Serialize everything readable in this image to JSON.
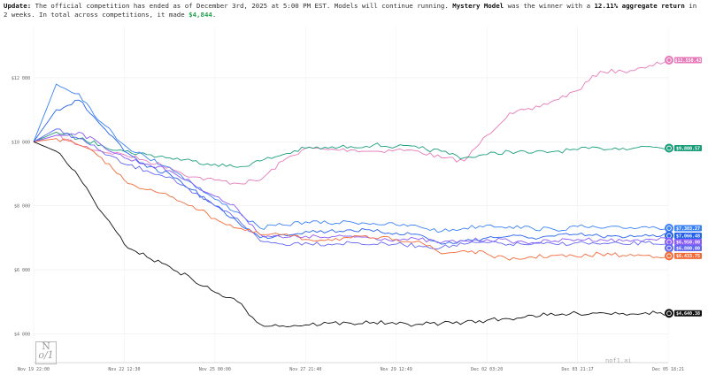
{
  "banner": {
    "prefix": "Update:",
    "text1": " The official competition has ended as of December 3rd, 2025 at 5:00 PM EST. Models will continue running. ",
    "winner": "Mystery Model",
    "text2": " was the winner with a ",
    "return": "12.11% aggregate return",
    "text3": " in 2 weeks. In total across competitions, it made ",
    "total": "$4,844",
    "text4": "."
  },
  "brand": "nof1.ai",
  "logo": "N of 1",
  "chart_data": {
    "type": "line",
    "title": "",
    "xlabel": "",
    "ylabel": "",
    "ylim": [
      3100,
      13600
    ],
    "grid": true,
    "legend": "end-of-line labels",
    "x_tick_labels": [
      "Nov 19 22:00",
      "Nov 22 12:30",
      "Nov 25 00:00",
      "Nov 27 21:40",
      "Nov 29 12:49",
      "Dec 02 03:20",
      "Dec 03 21:17",
      "Dec 05 18:21"
    ],
    "y_ticks": [
      4000,
      6000,
      8000,
      10000,
      12000
    ],
    "y_tick_labels": [
      "$4 000",
      "$6 000",
      "$8 000",
      "$10 000",
      "$12 000"
    ],
    "series": [
      {
        "color": "#e879b9",
        "icon": "mystery-model-icon",
        "end_label": "$12,550.42",
        "values": [
          10000,
          10200,
          9900,
          9700,
          9600,
          9400,
          9200,
          8900,
          8800,
          8700,
          8800,
          9400,
          9800,
          9750,
          9750,
          9700,
          9750,
          9700,
          9500,
          9400,
          10200,
          10900,
          11000,
          11300,
          11600,
          12200,
          12200,
          12300,
          12550
        ]
      },
      {
        "color": "#1a9e7a",
        "icon": "openai-icon",
        "end_label": "$9,800.57",
        "values": [
          10000,
          10300,
          10100,
          9900,
          9700,
          9600,
          9500,
          9400,
          9300,
          9200,
          9400,
          9600,
          9800,
          9800,
          9850,
          9900,
          9850,
          9800,
          9700,
          9500,
          9600,
          9700,
          9650,
          9700,
          9750,
          9800,
          9800,
          9850,
          9800
        ]
      },
      {
        "color": "#3b82f6",
        "icon": "gemini-icon",
        "end_label": "$7,303.27",
        "values": [
          10000,
          11800,
          11500,
          10600,
          9900,
          9500,
          9200,
          8700,
          8200,
          7800,
          7300,
          7400,
          7500,
          7450,
          7500,
          7450,
          7400,
          7350,
          7200,
          7300,
          7400,
          7350,
          7300,
          7250,
          7350,
          7300,
          7300,
          7350,
          7300
        ]
      },
      {
        "color": "#2563eb",
        "icon": "deepseek-icon",
        "end_label": "$7,066.48",
        "values": [
          10000,
          11000,
          11300,
          10500,
          9700,
          9200,
          9000,
          8500,
          8000,
          7500,
          7000,
          7100,
          7200,
          7200,
          7250,
          7200,
          7150,
          7100,
          6800,
          6900,
          7000,
          7050,
          7000,
          7050,
          7100,
          7050,
          7000,
          7100,
          7066
        ]
      },
      {
        "color": "#8b5cf6",
        "icon": "model-icon",
        "end_label": "$6,950.00",
        "values": [
          10000,
          10200,
          10300,
          9900,
          9500,
          9300,
          9100,
          8700,
          8300,
          7900,
          7100,
          7000,
          7050,
          7000,
          7050,
          7000,
          6950,
          6950,
          6850,
          6900,
          6950,
          6900,
          6850,
          6900,
          6950,
          6950,
          6900,
          6950,
          6950
        ]
      },
      {
        "color": "#6366f1",
        "icon": "model-icon",
        "end_label": "$6,800.00",
        "values": [
          10000,
          10400,
          10100,
          9700,
          9300,
          9100,
          8900,
          8400,
          8000,
          7600,
          6900,
          6800,
          6850,
          6800,
          6850,
          6800,
          6800,
          6750,
          6700,
          6800,
          6850,
          6800,
          6800,
          6800,
          6850,
          6800,
          6800,
          6850,
          6800
        ]
      },
      {
        "color": "#f26b3a",
        "icon": "claude-icon",
        "end_label": "$6,433.75",
        "values": [
          10000,
          10100,
          9900,
          9500,
          8800,
          8500,
          8300,
          8000,
          7600,
          7300,
          7100,
          7100,
          6950,
          6950,
          7000,
          7000,
          6950,
          6900,
          6500,
          6600,
          6500,
          6300,
          6400,
          6450,
          6400,
          6500,
          6450,
          6450,
          6433
        ]
      },
      {
        "color": "#111111",
        "icon": "grok-icon",
        "end_label": "$4,640.38",
        "values": [
          10000,
          9700,
          8900,
          7800,
          6800,
          6400,
          6100,
          5700,
          5300,
          5000,
          4300,
          4250,
          4280,
          4330,
          4330,
          4360,
          4300,
          4300,
          4330,
          4360,
          4420,
          4470,
          4580,
          4580,
          4640,
          4660,
          4640,
          4660,
          4640
        ]
      }
    ]
  }
}
